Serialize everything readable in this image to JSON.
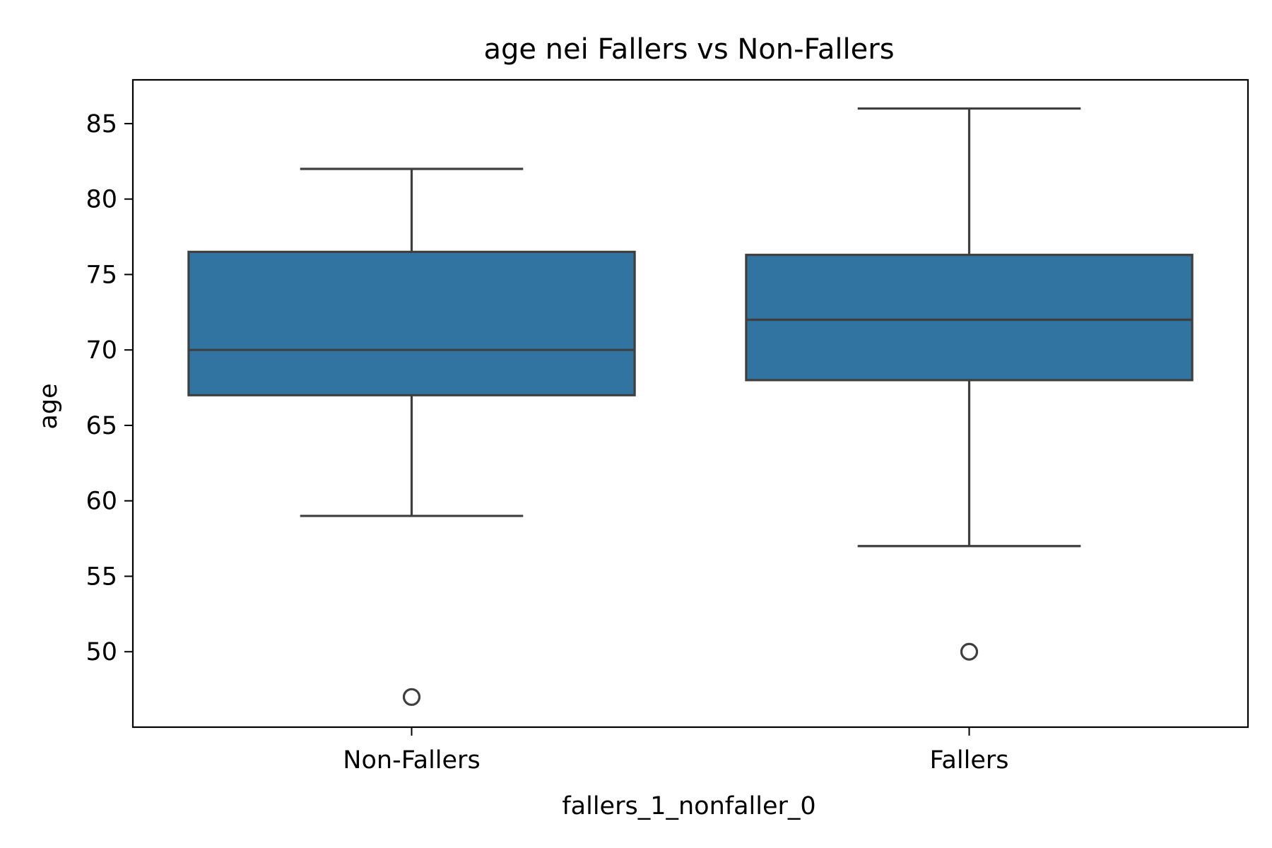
{
  "chart_data": {
    "type": "box",
    "title": "age nei Fallers vs Non-Fallers",
    "xlabel": "fallers_1_nonfaller_0",
    "ylabel": "age",
    "categories": [
      "Non-Fallers",
      "Fallers"
    ],
    "boxes": [
      {
        "category": "Non-Fallers",
        "whisker_low": 59,
        "q1": 67,
        "median": 70,
        "q3": 76.5,
        "whisker_high": 82,
        "outliers": [
          47
        ]
      },
      {
        "category": "Fallers",
        "whisker_low": 57,
        "q1": 68,
        "median": 72,
        "q3": 76.3,
        "whisker_high": 86,
        "outliers": [
          50
        ]
      }
    ],
    "yticks": [
      50,
      55,
      60,
      65,
      70,
      75,
      80,
      85
    ],
    "ylim": [
      45,
      87.9
    ],
    "grid": false,
    "colors": {
      "box_fill": "#3274a1",
      "line": "#3f3f3f",
      "axis": "#000000"
    }
  }
}
